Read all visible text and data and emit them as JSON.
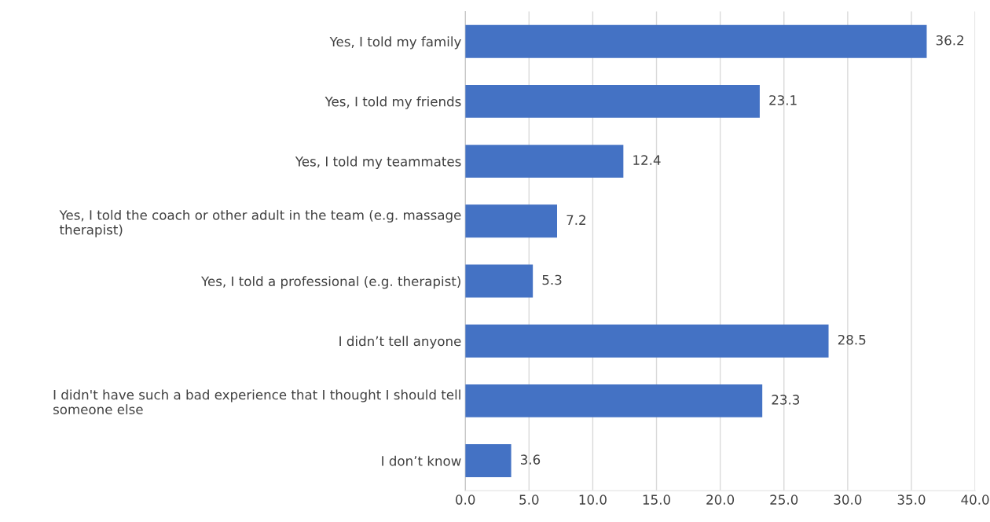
{
  "chart_data": {
    "type": "bar",
    "orientation": "horizontal",
    "categories": [
      "Yes, I told my family",
      "Yes, I told my friends",
      "Yes, I told my teammates",
      "Yes, I told the coach or other adult in the team (e.g. massage\ntherapist)",
      "Yes, I told a professional (e.g. therapist)",
      "I didn’t tell anyone",
      "I didn't have such a bad experience that I thought I should tell\nsomeone else",
      "I don’t know"
    ],
    "values": [
      36.2,
      23.1,
      12.4,
      7.2,
      5.3,
      28.5,
      23.3,
      3.6
    ],
    "color": "#4472c4",
    "xlim": [
      0,
      40
    ],
    "xticks": [
      {
        "value": 0,
        "label": "0.0"
      },
      {
        "value": 5,
        "label": "5.0"
      },
      {
        "value": 10,
        "label": "10.0"
      },
      {
        "value": 15,
        "label": "15.0"
      },
      {
        "value": 20,
        "label": "20.0"
      },
      {
        "value": 25,
        "label": "25.0"
      },
      {
        "value": 30,
        "label": "30.0"
      },
      {
        "value": 35,
        "label": "35.0"
      },
      {
        "value": 40,
        "label": "40.0"
      }
    ],
    "grid": "x",
    "data_labels": true,
    "legend": false
  }
}
